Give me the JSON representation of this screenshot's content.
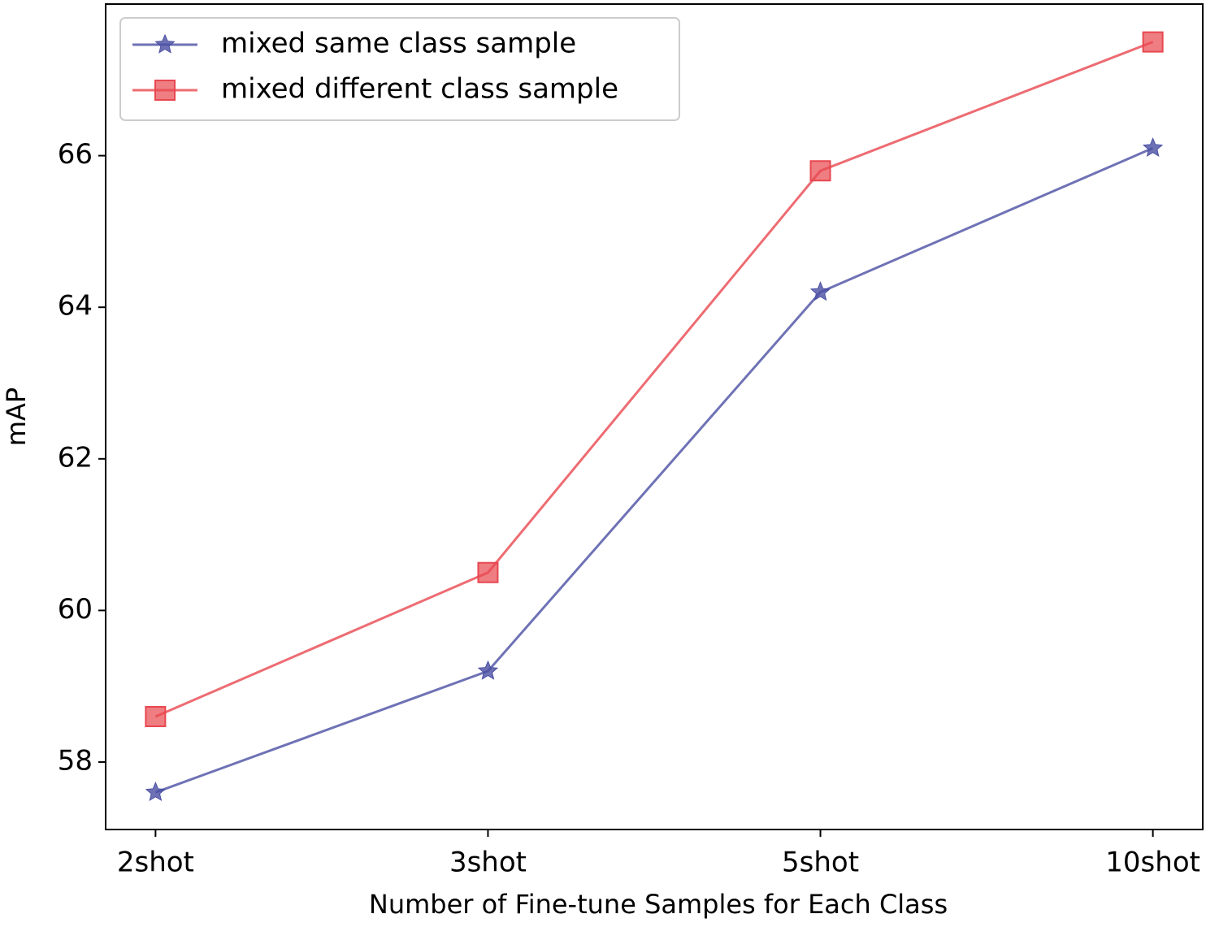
{
  "chart_data": {
    "type": "line",
    "x_label": "Number of Fine-tune Samples for Each Class",
    "y_label": "mAP",
    "categories": [
      "2shot",
      "3shot",
      "5shot",
      "10shot"
    ],
    "series": [
      {
        "name": "mixed same class sample",
        "color": "#4a4fa3",
        "marker": "star",
        "values": [
          57.6,
          59.2,
          64.2,
          66.1
        ]
      },
      {
        "name": "mixed different class sample",
        "color": "#e8474f",
        "marker": "square",
        "values": [
          58.6,
          60.5,
          65.8,
          67.5
        ]
      }
    ],
    "ylim": [
      57.11,
      68.0
    ],
    "yticks": [
      58,
      60,
      62,
      64,
      66
    ],
    "grid": false,
    "legend": "upper left"
  }
}
